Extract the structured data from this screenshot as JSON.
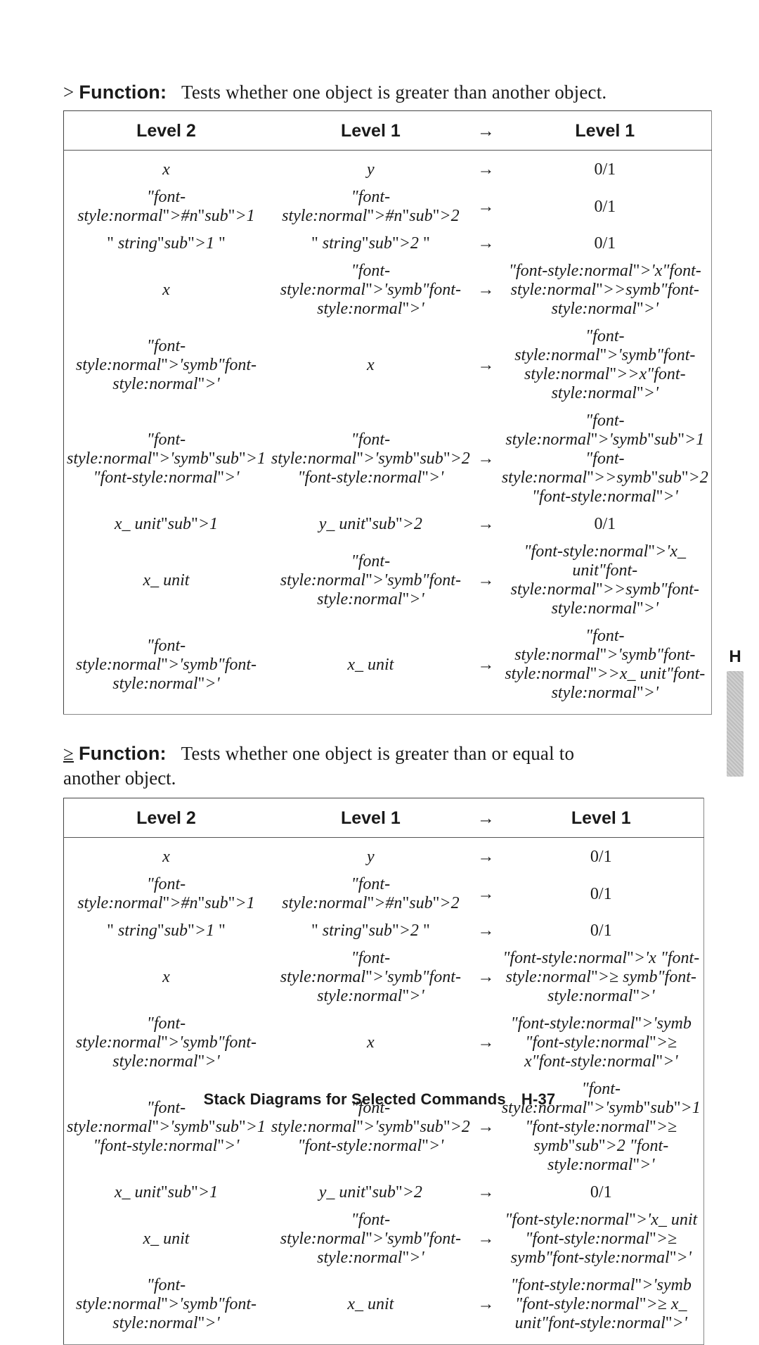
{
  "page": {
    "footer_title": "Stack Diagrams for Selected Commands",
    "footer_page": "H-37",
    "side_tab": "H"
  },
  "sections": [
    {
      "symbol": ">",
      "label": "Function:",
      "desc_lines": [
        "Tests whether one object is greater than another object."
      ],
      "table": {
        "headers": [
          "Level 2",
          "Level 1",
          "→",
          "Level 1"
        ],
        "rows": [
          [
            "x",
            "y",
            "→",
            "0/1"
          ],
          [
            "#n|1|",
            "#n|2|",
            "→",
            "0/1"
          ],
          [
            "\" string|1| \"",
            "\" string|2| \"",
            "→",
            "0/1"
          ],
          [
            "x",
            "'symb'",
            "→",
            "'x>symb'"
          ],
          [
            "'symb'",
            "x",
            "→",
            "'symb>x'"
          ],
          [
            "'symb|1| '",
            "'symb|2| '",
            "→",
            "'symb|1| >symb|2| '"
          ],
          [
            "x_ unit|1|",
            "y_ unit|2|",
            "→",
            "0/1"
          ],
          [
            "x_ unit",
            "'symb'",
            "→",
            "'x_ unit>symb'"
          ],
          [
            "'symb'",
            "x_ unit",
            "→",
            "'symb>x_ unit'"
          ]
        ]
      }
    },
    {
      "symbol": "≥",
      "label": "Function:",
      "desc_lines": [
        "Tests whether one object is greater than or equal to",
        "another object."
      ],
      "table": {
        "headers": [
          "Level 2",
          "Level 1",
          "→",
          "Level 1"
        ],
        "rows": [
          [
            "x",
            "y",
            "→",
            "0/1"
          ],
          [
            "#n|1|",
            "#n|2|",
            "→",
            "0/1"
          ],
          [
            "\" string|1| \"",
            "\" string|2| \"",
            "→",
            "0/1"
          ],
          [
            "x",
            "'symb'",
            "→",
            "'x ≥ symb'"
          ],
          [
            "'symb'",
            "x",
            "→",
            "'symb ≥ x'"
          ],
          [
            "'symb|1| '",
            "'symb|2| '",
            "→",
            "'symb|1| ≥ symb|2| '"
          ],
          [
            "x_ unit|1|",
            "y_ unit|2|",
            "→",
            "0/1"
          ],
          [
            "x_ unit",
            "'symb'",
            "→",
            "'x_ unit ≥ symb'"
          ],
          [
            "'symb'",
            "x_ unit",
            "→",
            "'symb ≥ x_ unit'"
          ]
        ]
      }
    }
  ]
}
